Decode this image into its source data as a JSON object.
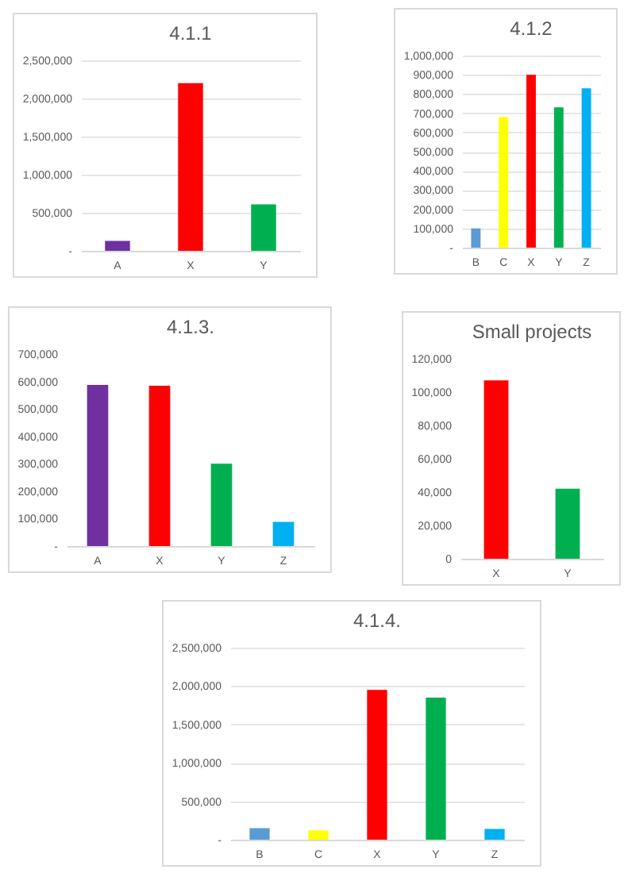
{
  "chart_data": [
    {
      "type": "bar",
      "title": "4.1.1",
      "categories": [
        "A",
        "X",
        "Y"
      ],
      "values": [
        130000,
        2200000,
        610000
      ],
      "colors": [
        "#7030a0",
        "#ff0000",
        "#00b050"
      ],
      "ylim": [
        0,
        2500000
      ],
      "yticks": [
        {
          "value": 0,
          "label": "-"
        },
        {
          "value": 500000,
          "label": "500,000"
        },
        {
          "value": 1000000,
          "label": "1,000,000"
        },
        {
          "value": 1500000,
          "label": "1,500,000"
        },
        {
          "value": 2000000,
          "label": "2,000,000"
        },
        {
          "value": 2500000,
          "label": "2,500,000"
        }
      ],
      "grid": "y"
    },
    {
      "type": "bar",
      "title": "4.1.2",
      "categories": [
        "B",
        "C",
        "X",
        "Y",
        "Z"
      ],
      "values": [
        100000,
        680000,
        900000,
        730000,
        830000
      ],
      "colors": [
        "#5b9bd5",
        "#ffff00",
        "#ff0000",
        "#00b050",
        "#00b0f0"
      ],
      "ylim": [
        0,
        1000000
      ],
      "yticks": [
        {
          "value": 0,
          "label": "-"
        },
        {
          "value": 100000,
          "label": "100,000"
        },
        {
          "value": 200000,
          "label": "200,000"
        },
        {
          "value": 300000,
          "label": "300,000"
        },
        {
          "value": 400000,
          "label": "400,000"
        },
        {
          "value": 500000,
          "label": "500,000"
        },
        {
          "value": 600000,
          "label": "600,000"
        },
        {
          "value": 700000,
          "label": "700,000"
        },
        {
          "value": 800000,
          "label": "800,000"
        },
        {
          "value": 900000,
          "label": "900,000"
        },
        {
          "value": 1000000,
          "label": "1,000,000"
        }
      ],
      "grid": "y"
    },
    {
      "type": "bar",
      "title": "4.1.3.",
      "categories": [
        "A",
        "X",
        "Y",
        "Z"
      ],
      "values": [
        587000,
        584000,
        300000,
        88000
      ],
      "colors": [
        "#7030a0",
        "#ff0000",
        "#00b050",
        "#00b0f0"
      ],
      "ylim": [
        0,
        700000
      ],
      "yticks": [
        {
          "value": 0,
          "label": "-"
        },
        {
          "value": 100000,
          "label": "100,000"
        },
        {
          "value": 200000,
          "label": "200,000"
        },
        {
          "value": 300000,
          "label": "300,000"
        },
        {
          "value": 400000,
          "label": "400,000"
        },
        {
          "value": 500000,
          "label": "500,000"
        },
        {
          "value": 600000,
          "label": "600,000"
        },
        {
          "value": 700000,
          "label": "700,000"
        }
      ],
      "grid": false
    },
    {
      "type": "bar",
      "title": "Small projects",
      "categories": [
        "X",
        "Y"
      ],
      "values": [
        107000,
        42000
      ],
      "colors": [
        "#ff0000",
        "#00b050"
      ],
      "ylim": [
        0,
        120000
      ],
      "yticks": [
        {
          "value": 0,
          "label": "0"
        },
        {
          "value": 20000,
          "label": "20,000"
        },
        {
          "value": 40000,
          "label": "40,000"
        },
        {
          "value": 60000,
          "label": "60,000"
        },
        {
          "value": 80000,
          "label": "80,000"
        },
        {
          "value": 100000,
          "label": "100,000"
        },
        {
          "value": 120000,
          "label": "120,000"
        }
      ],
      "grid": false
    },
    {
      "type": "bar",
      "title": "4.1.4.",
      "categories": [
        "B",
        "C",
        "X",
        "Y",
        "Z"
      ],
      "values": [
        150000,
        120000,
        1950000,
        1850000,
        140000
      ],
      "colors": [
        "#5b9bd5",
        "#ffff00",
        "#ff0000",
        "#00b050",
        "#00b0f0"
      ],
      "ylim": [
        0,
        2500000
      ],
      "yticks": [
        {
          "value": 0,
          "label": "-"
        },
        {
          "value": 500000,
          "label": "500,000"
        },
        {
          "value": 1000000,
          "label": "1,000,000"
        },
        {
          "value": 1500000,
          "label": "1,500,000"
        },
        {
          "value": 2000000,
          "label": "2,000,000"
        },
        {
          "value": 2500000,
          "label": "2,500,000"
        }
      ],
      "grid": "y"
    }
  ]
}
